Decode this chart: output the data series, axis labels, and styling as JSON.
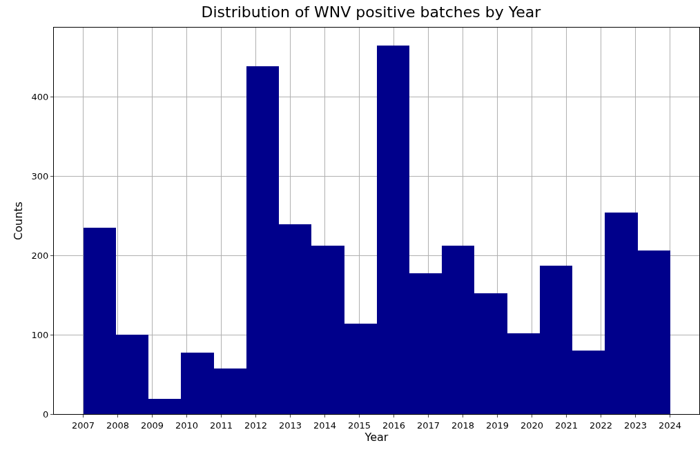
{
  "chart_data": {
    "type": "histogram",
    "title": "Distribution of WNV positive batches by Year",
    "xlabel": "Year",
    "ylabel": "Counts",
    "bins": [
      2007,
      2007.94,
      2008.89,
      2009.83,
      2010.78,
      2011.72,
      2012.67,
      2013.61,
      2014.56,
      2015.5,
      2016.44,
      2017.39,
      2018.33,
      2019.28,
      2020.22,
      2021.17,
      2022.11,
      2023.06,
      2024
    ],
    "values": [
      235,
      100,
      19,
      77,
      57,
      438,
      239,
      212,
      114,
      464,
      177,
      212,
      152,
      102,
      187,
      80,
      254,
      206
    ],
    "color": "#00008b",
    "xlim": [
      2006.15,
      2024.85
    ],
    "xticks": [
      2007,
      2008,
      2009,
      2010,
      2011,
      2012,
      2013,
      2014,
      2015,
      2016,
      2017,
      2018,
      2019,
      2020,
      2021,
      2022,
      2023,
      2024
    ],
    "ylim": [
      0,
      487
    ],
    "yticks": [
      0,
      100,
      200,
      300,
      400
    ],
    "grid": true
  }
}
